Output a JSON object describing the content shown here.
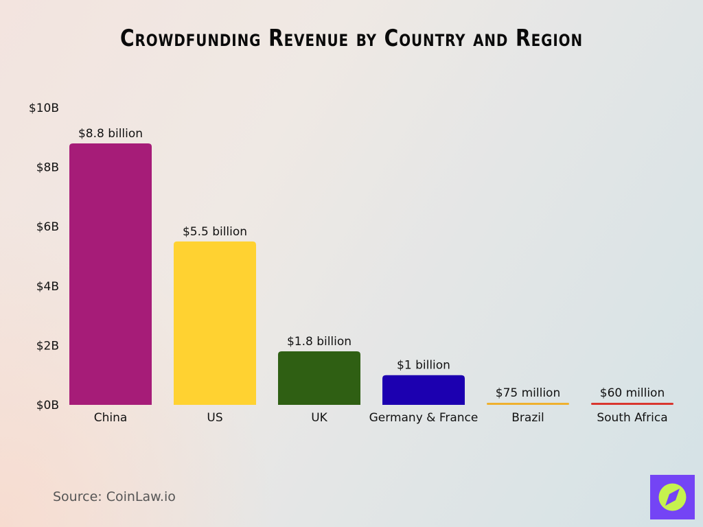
{
  "chart_data": {
    "type": "bar",
    "title": "Crowdfunding Revenue by Country and Region",
    "categories": [
      "China",
      "US",
      "UK",
      "Germany & France",
      "Brazil",
      "South Africa"
    ],
    "values": [
      8.8,
      5.5,
      1.8,
      1.0,
      0.075,
      0.06
    ],
    "unit": "billion USD",
    "data_labels": [
      "$8.8 billion",
      "$5.5 billion",
      "$1.8 billion",
      "$1 billion",
      "$75 million",
      "$60 million"
    ],
    "colors": [
      "#a61c78",
      "#ffd231",
      "#2f5f13",
      "#1c00b0",
      "#efb02e",
      "#d9352e"
    ],
    "ylim": [
      0,
      10
    ],
    "yticks": [
      0,
      2,
      4,
      6,
      8,
      10
    ],
    "ytick_labels": [
      "$0B",
      "$2B",
      "$4B",
      "$6B",
      "$8B",
      "$10B"
    ],
    "xlabel": "",
    "ylabel": "",
    "grid": false,
    "legend": "none"
  },
  "source": "Source: CoinLaw.io",
  "logo": {
    "icon": "compass-icon",
    "bg": "#7444f5",
    "fg": "#c6f24e"
  }
}
